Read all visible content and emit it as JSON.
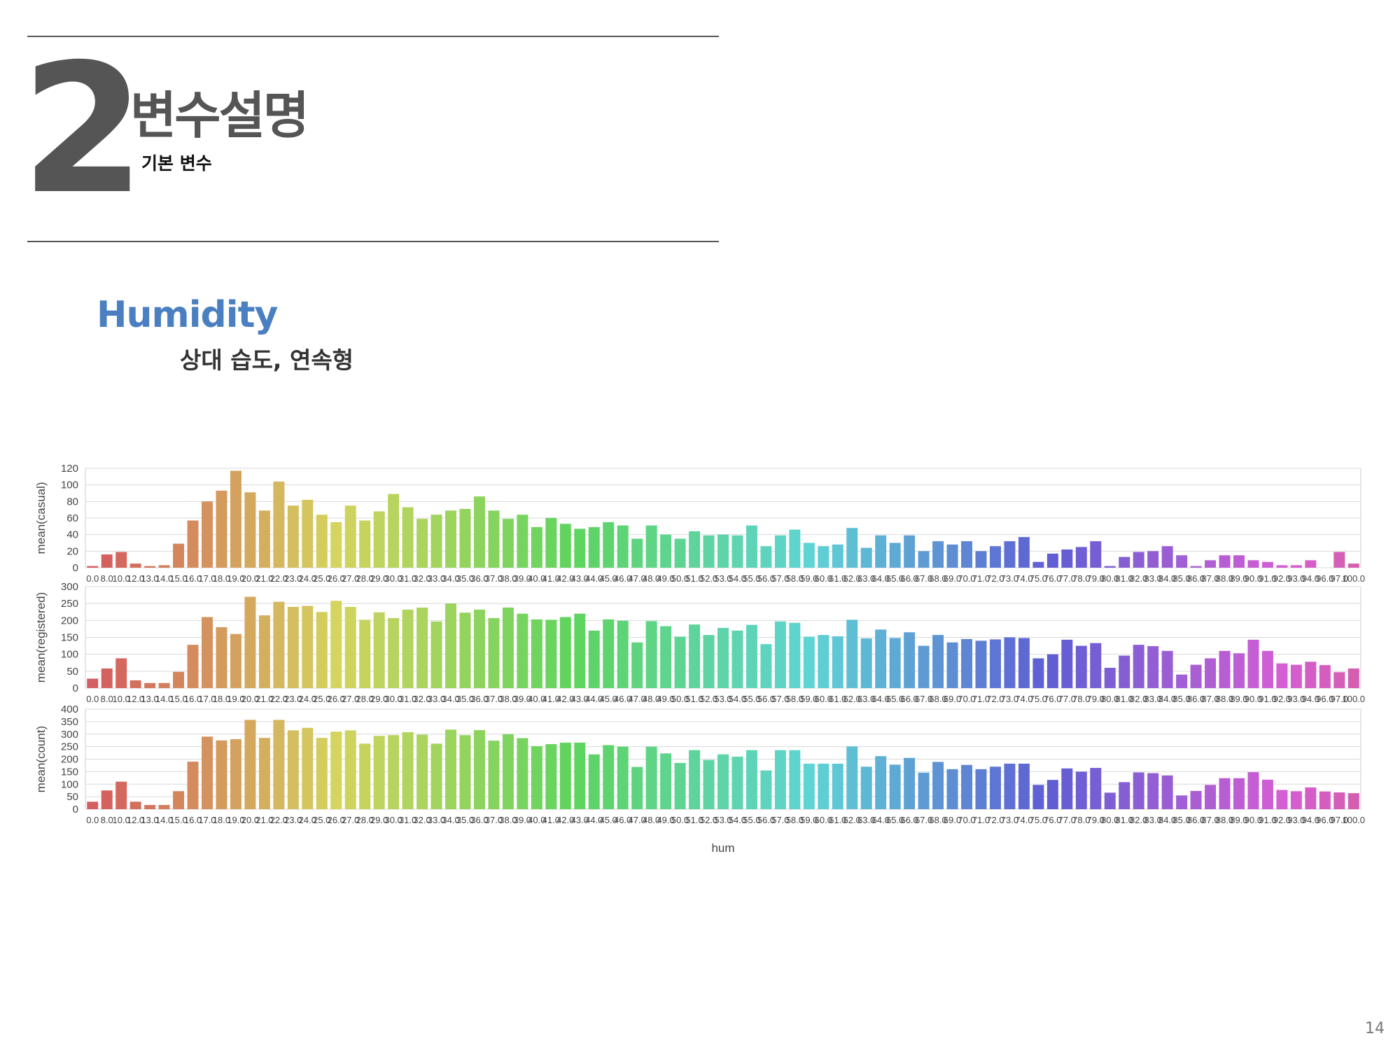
{
  "header": {
    "section_number": "2",
    "section_title": "변수설명",
    "section_subtitle": "기본 변수"
  },
  "variable": {
    "name": "Humidity",
    "description": "상대 습도, 연속형"
  },
  "page_number": "14",
  "colors": {
    "rule": "#555555",
    "variable_name": "#4a7fc1",
    "grid": "#d9d9d9"
  },
  "chart_data": {
    "type": "bar",
    "xlabel": "hum",
    "grid": true,
    "categories": [
      "0.0",
      "8.0",
      "10.0",
      "12.0",
      "13.0",
      "14.0",
      "15.0",
      "16.0",
      "17.0",
      "18.0",
      "19.0",
      "20.0",
      "21.0",
      "22.0",
      "23.0",
      "24.0",
      "25.0",
      "26.0",
      "27.0",
      "28.0",
      "29.0",
      "30.0",
      "31.0",
      "32.0",
      "33.0",
      "34.0",
      "35.0",
      "36.0",
      "37.0",
      "38.0",
      "39.0",
      "40.0",
      "41.0",
      "42.0",
      "43.0",
      "44.0",
      "45.0",
      "46.0",
      "47.0",
      "48.0",
      "49.0",
      "50.0",
      "51.0",
      "52.0",
      "53.0",
      "54.0",
      "55.0",
      "56.0",
      "57.0",
      "58.0",
      "59.0",
      "60.0",
      "61.0",
      "62.0",
      "63.0",
      "64.0",
      "65.0",
      "66.0",
      "67.0",
      "68.0",
      "69.0",
      "70.0",
      "71.0",
      "72.0",
      "73.0",
      "74.0",
      "75.0",
      "76.0",
      "77.0",
      "78.0",
      "79.0",
      "80.0",
      "81.0",
      "82.0",
      "83.0",
      "84.0",
      "85.0",
      "86.0",
      "87.0",
      "88.0",
      "89.0",
      "90.0",
      "91.0",
      "92.0",
      "93.0",
      "94.0",
      "96.0",
      "97.0",
      "100.0"
    ],
    "panels": [
      {
        "ylabel": "mean(casual)",
        "ylim": [
          0,
          120
        ],
        "yticks": [
          0,
          20,
          40,
          60,
          80,
          100,
          120
        ],
        "values": [
          2,
          16,
          19,
          5,
          2,
          3,
          29,
          57,
          80,
          93,
          117,
          91,
          69,
          104,
          75,
          82,
          64,
          55,
          75,
          57,
          68,
          89,
          73,
          59,
          64,
          69,
          71,
          86,
          69,
          59,
          64,
          49,
          60,
          53,
          47,
          49,
          55,
          51,
          35,
          51,
          40,
          35,
          44,
          39,
          40,
          39,
          51,
          26,
          39,
          46,
          30,
          26,
          28,
          48,
          24,
          39,
          30,
          39,
          20,
          32,
          28,
          32,
          20,
          26,
          32,
          37,
          7,
          17,
          22,
          25,
          32,
          2,
          13,
          19,
          20,
          26,
          15,
          2,
          9,
          15,
          15,
          9,
          7,
          3,
          3,
          9,
          0,
          19,
          5
        ]
      },
      {
        "ylabel": "mean(registered)",
        "ylim": [
          0,
          300
        ],
        "yticks": [
          0,
          50,
          100,
          150,
          200,
          250,
          300
        ],
        "values": [
          28,
          58,
          88,
          23,
          15,
          15,
          48,
          128,
          210,
          180,
          160,
          270,
          215,
          255,
          240,
          243,
          225,
          258,
          240,
          202,
          224,
          207,
          232,
          238,
          197,
          250,
          223,
          232,
          207,
          238,
          220,
          203,
          202,
          210,
          220,
          170,
          203,
          199,
          135,
          198,
          183,
          152,
          188,
          157,
          178,
          170,
          187,
          130,
          197,
          193,
          152,
          157,
          153,
          202,
          147,
          173,
          148,
          165,
          125,
          157,
          135,
          145,
          140,
          144,
          150,
          148,
          88,
          100,
          143,
          125,
          133,
          60,
          96,
          128,
          124,
          110,
          40,
          69,
          88,
          110,
          103,
          143,
          110,
          73,
          69,
          78,
          68,
          47,
          58
        ]
      },
      {
        "ylabel": "mean(count)",
        "ylim": [
          0,
          400
        ],
        "yticks": [
          0,
          50,
          100,
          150,
          200,
          250,
          300,
          350,
          400
        ],
        "values": [
          30,
          75,
          110,
          30,
          17,
          17,
          72,
          190,
          290,
          275,
          280,
          357,
          285,
          357,
          315,
          325,
          285,
          310,
          315,
          262,
          293,
          296,
          308,
          298,
          262,
          318,
          296,
          316,
          274,
          300,
          284,
          252,
          260,
          266,
          266,
          219,
          256,
          250,
          169,
          250,
          223,
          185,
          236,
          197,
          219,
          210,
          236,
          155,
          236,
          236,
          182,
          182,
          182,
          251,
          170,
          212,
          178,
          205,
          146,
          189,
          160,
          177,
          160,
          170,
          182,
          182,
          97,
          117,
          163,
          150,
          165,
          66,
          108,
          147,
          144,
          135,
          55,
          73,
          97,
          124,
          124,
          148,
          118,
          77,
          72,
          87,
          71,
          67,
          64
        ]
      }
    ]
  }
}
